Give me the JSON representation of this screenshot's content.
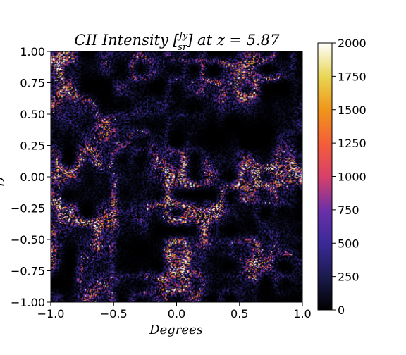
{
  "chart_data": {
    "type": "heatmap",
    "title_prefix": "CII Intensity [",
    "title_unit_num": "Jy",
    "title_unit_den": "sr",
    "title_suffix": "] at z = 5.87",
    "xlabel": "Degrees",
    "ylabel": "D",
    "xlim": [
      -1.0,
      1.0
    ],
    "ylim": [
      -1.0,
      1.0
    ],
    "x_ticks": [
      "−1.0",
      "−0.5",
      "0.0",
      "0.5",
      "1.0"
    ],
    "x_tick_values": [
      -1.0,
      -0.5,
      0.0,
      0.5,
      1.0
    ],
    "y_ticks": [
      "1.00",
      "0.75",
      "0.50",
      "0.25",
      "0.00",
      "−0.25",
      "−0.50",
      "−0.75",
      "−1.00"
    ],
    "y_tick_values": [
      1.0,
      0.75,
      0.5,
      0.25,
      0.0,
      -0.25,
      -0.5,
      -0.75,
      -1.0
    ],
    "colorbar": {
      "colormap": "CMRmap",
      "range": [
        0,
        2000
      ],
      "ticks": [
        "2000",
        "1750",
        "1500",
        "1250",
        "1000",
        "750",
        "500",
        "250",
        "0"
      ],
      "tick_values": [
        2000,
        1750,
        1500,
        1250,
        1000,
        750,
        500,
        250,
        0
      ]
    },
    "colors": {
      "background": "#000000",
      "low": "#1a1a4a",
      "mid": "#6a2fa8",
      "high": "#e85a2a",
      "peak": "#ffffe6"
    }
  }
}
